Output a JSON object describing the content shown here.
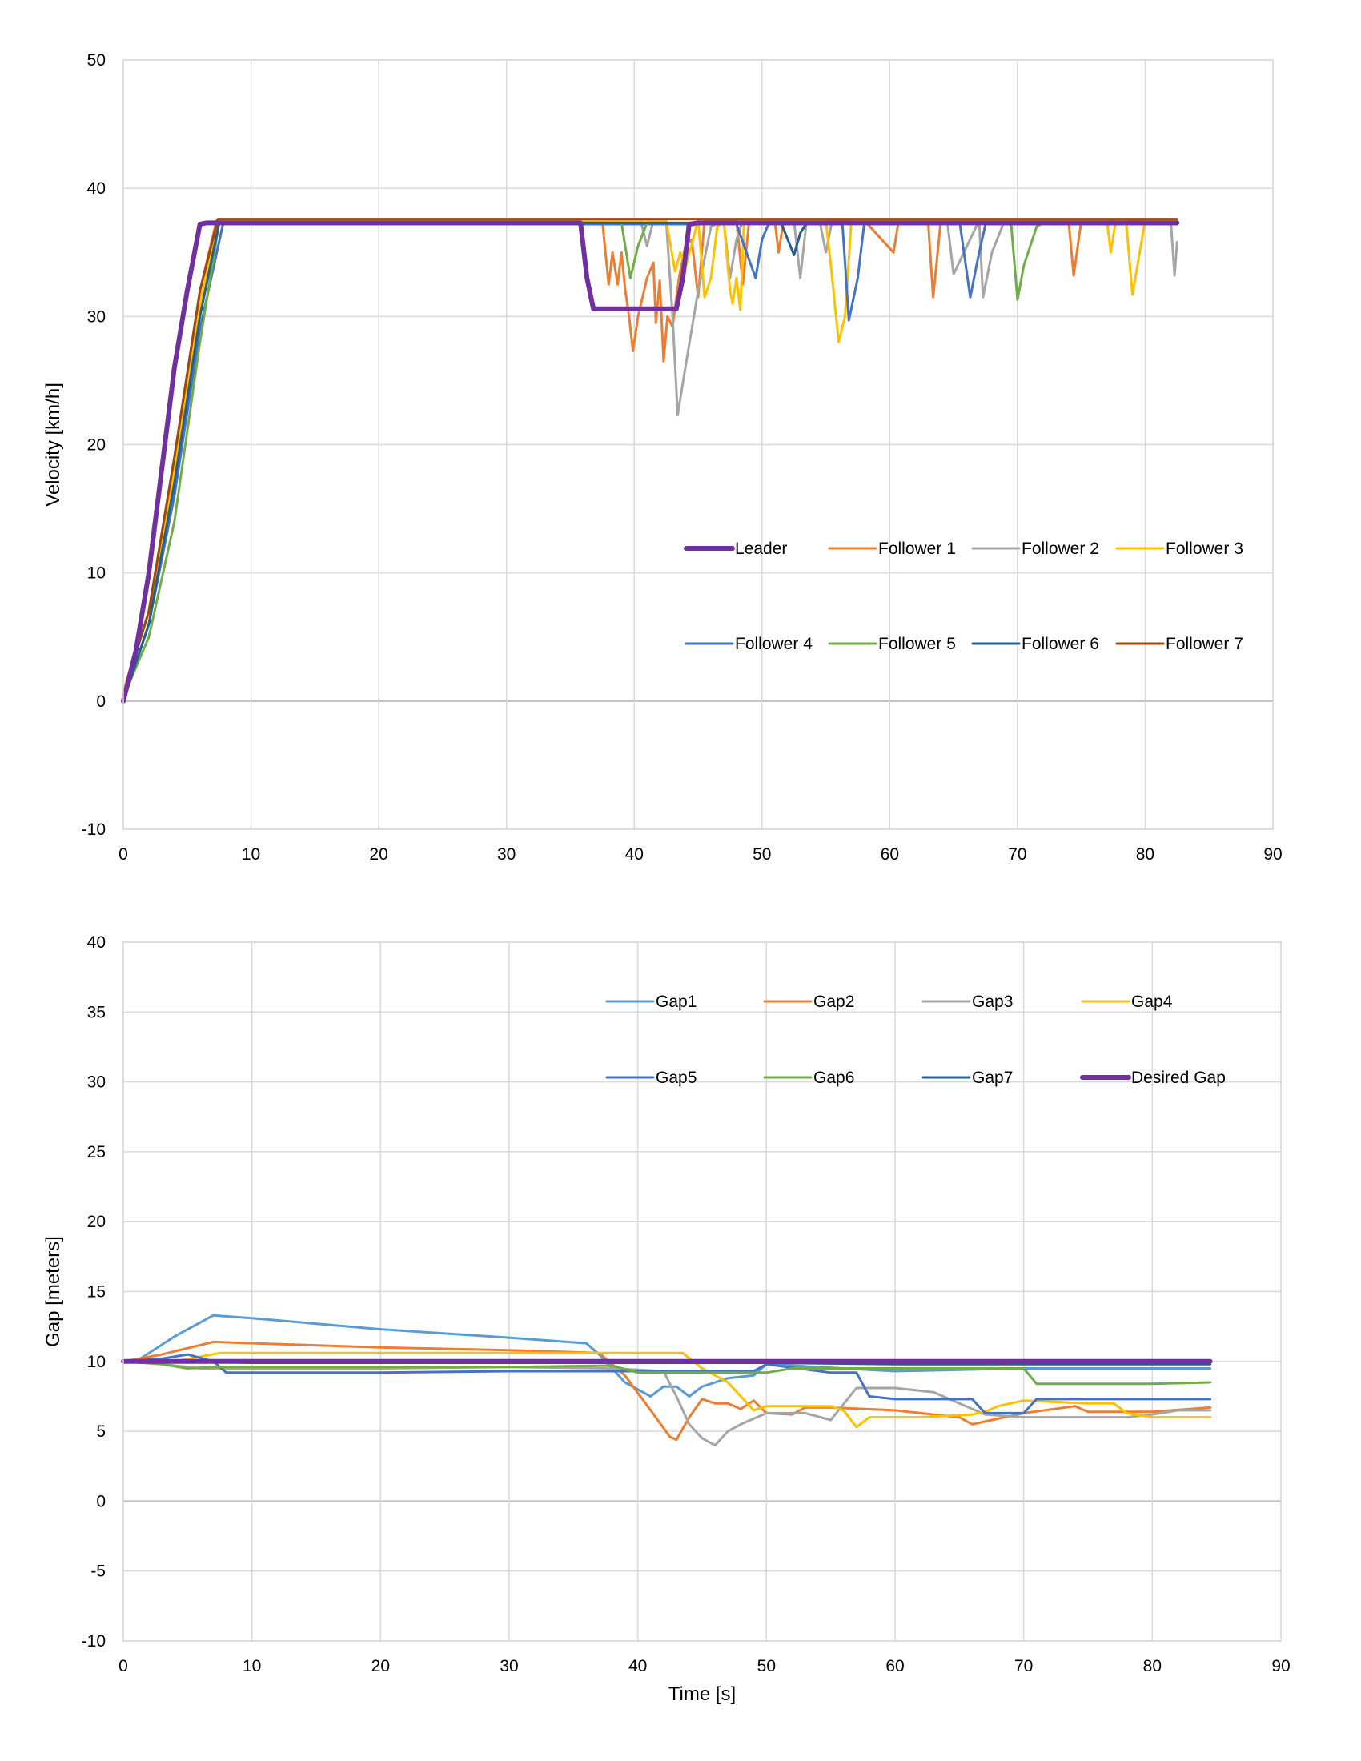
{
  "chart_data": [
    {
      "type": "line",
      "title": "",
      "xlabel": "",
      "ylabel": "Velocity [km/h]",
      "xlim": [
        0,
        90
      ],
      "ylim": [
        -10,
        50
      ],
      "xticks": [
        0,
        10,
        20,
        30,
        40,
        50,
        60,
        70,
        80,
        90
      ],
      "yticks": [
        -10,
        0,
        10,
        20,
        30,
        40,
        50
      ],
      "grid": true,
      "legend_position": "inside lower-right",
      "series": [
        {
          "name": "Leader",
          "color": "#7030A0",
          "width": 6,
          "x": [
            0,
            1,
            2,
            3,
            4,
            5,
            6,
            6.5,
            7,
            10,
            20,
            30,
            35.8,
            36.3,
            36.8,
            40,
            43.3,
            43.8,
            44.3,
            45,
            50,
            60,
            70,
            80,
            82.5
          ],
          "y": [
            0,
            4,
            10,
            18,
            26,
            32,
            37.2,
            37.3,
            37.3,
            37.3,
            37.3,
            37.3,
            37.3,
            33,
            30.6,
            30.6,
            30.6,
            33,
            37.2,
            37.3,
            37.3,
            37.3,
            37.3,
            37.3,
            37.3
          ]
        },
        {
          "name": "Follower 1",
          "color": "#ED7D31",
          "width": 3,
          "x": [
            0,
            2,
            4,
            6,
            7.3,
            10,
            30,
            37.5,
            38,
            38.3,
            38.7,
            39,
            39.3,
            39.6,
            39.9,
            40.3,
            41,
            41.5,
            41.7,
            42,
            42.3,
            42.6,
            43,
            43.5,
            44,
            44.5,
            45,
            45.5,
            46,
            48,
            48.5,
            49,
            50,
            51,
            51.3,
            51.7,
            55,
            58,
            60.3,
            60.7,
            63,
            63.4,
            64,
            70,
            74,
            74.4,
            75,
            80,
            82.5
          ],
          "y": [
            0.5,
            7,
            19,
            32,
            37.5,
            37.5,
            37.5,
            37.5,
            32.5,
            35,
            32.5,
            35,
            32,
            30,
            27.3,
            30,
            33,
            34.2,
            29.5,
            32.8,
            26.5,
            30,
            29.2,
            33,
            35.5,
            36,
            31.5,
            37.5,
            37.5,
            37.5,
            32.5,
            37.5,
            37.5,
            37.5,
            35,
            37.5,
            37.5,
            37.5,
            35,
            37.5,
            37.5,
            31.5,
            37.5,
            37.5,
            37.5,
            33.2,
            37.5,
            37.5,
            37.5
          ]
        },
        {
          "name": "Follower 2",
          "color": "#A5A5A5",
          "width": 3,
          "x": [
            0,
            2,
            4,
            6,
            7.5,
            10,
            30,
            40.5,
            41,
            41.5,
            42.5,
            43,
            43.4,
            44,
            45,
            46,
            47,
            47.5,
            48,
            48.5,
            50,
            52.5,
            53,
            53.5,
            54.5,
            55,
            55.5,
            60,
            64.5,
            65,
            67,
            67.3,
            68,
            69,
            80,
            82,
            82.3,
            82.5
          ],
          "y": [
            0,
            6,
            17,
            31,
            37.5,
            37.5,
            37.5,
            37.5,
            35.5,
            37.5,
            37.5,
            30,
            22.3,
            26,
            32,
            37,
            37.5,
            33,
            36,
            37.5,
            37.5,
            37.5,
            33,
            37.5,
            37.5,
            35,
            37.5,
            37.5,
            37.5,
            33.3,
            37.5,
            31.5,
            35,
            37.5,
            37.5,
            37.5,
            33.2,
            35.8
          ]
        },
        {
          "name": "Follower 3",
          "color": "#FFC000",
          "width": 3,
          "x": [
            0,
            2,
            4,
            6,
            7.5,
            10,
            30,
            42.5,
            43.2,
            43.6,
            44,
            45,
            45.5,
            46,
            46.5,
            47,
            47.5,
            47.7,
            48,
            48.3,
            48.6,
            50,
            55,
            55.5,
            56,
            56.5,
            57,
            60,
            70,
            77,
            77.3,
            77.7,
            78.5,
            79,
            80,
            82.5
          ],
          "y": [
            0.8,
            7,
            18,
            31,
            37.5,
            37.5,
            37.5,
            37.5,
            33.5,
            35,
            33.8,
            37.5,
            31.5,
            33,
            37,
            37.5,
            32,
            31,
            33,
            30.5,
            37.5,
            37.5,
            37.5,
            33,
            28,
            30,
            37.5,
            37.5,
            37.5,
            37.5,
            35,
            37.5,
            37.5,
            31.7,
            37.5,
            37.5
          ]
        },
        {
          "name": "Follower 4",
          "color": "#4472C4",
          "width": 3,
          "x": [
            0,
            2,
            4,
            6,
            7.8,
            10,
            30,
            48,
            49.5,
            50,
            50.5,
            51,
            55,
            56.3,
            56.8,
            57.5,
            58,
            60,
            65.5,
            66.3,
            67,
            67.5,
            68,
            70,
            82.5
          ],
          "y": [
            0,
            6,
            16,
            29,
            37.2,
            37.2,
            37.2,
            37.2,
            33,
            36,
            37.2,
            37.2,
            37.2,
            37.2,
            29.7,
            33,
            37.2,
            37.2,
            37.2,
            31.5,
            35,
            37.2,
            37.2,
            37.2,
            37.2
          ]
        },
        {
          "name": "Follower 5",
          "color": "#70AD47",
          "width": 3,
          "x": [
            0,
            2,
            4,
            6,
            7.5,
            10,
            30,
            39,
            39.7,
            40.3,
            41,
            45,
            50,
            60,
            69.5,
            70,
            70.5,
            71.5,
            72,
            80,
            82.5
          ],
          "y": [
            0.3,
            5,
            14,
            28,
            37.3,
            37.3,
            37.3,
            37.3,
            33,
            35.5,
            37.3,
            37.3,
            37.3,
            37.3,
            37.3,
            31.3,
            34,
            37,
            37.3,
            37.3,
            37.3
          ]
        },
        {
          "name": "Follower 6",
          "color": "#255E91",
          "width": 3,
          "x": [
            0,
            2,
            4,
            6,
            7.5,
            10,
            30,
            51.5,
            52.5,
            53,
            53.5,
            55,
            70,
            82.5
          ],
          "y": [
            0,
            6,
            17,
            30,
            37.3,
            37.3,
            37.3,
            37.3,
            34.8,
            36.5,
            37.3,
            37.3,
            37.3,
            37.3
          ]
        },
        {
          "name": "Follower 7",
          "color": "#9E480E",
          "width": 3,
          "x": [
            0,
            2,
            4,
            6,
            7.4,
            10,
            30,
            50,
            70,
            82.5
          ],
          "y": [
            0.5,
            7,
            19,
            32,
            37.6,
            37.6,
            37.6,
            37.6,
            37.6,
            37.6
          ]
        }
      ]
    },
    {
      "type": "line",
      "title": "",
      "xlabel": "Time [s]",
      "ylabel": "Gap [meters]",
      "xlim": [
        0,
        90
      ],
      "ylim": [
        -10,
        40
      ],
      "xticks": [
        0,
        10,
        20,
        30,
        40,
        50,
        60,
        70,
        80,
        90
      ],
      "yticks": [
        -10,
        -5,
        0,
        5,
        10,
        15,
        20,
        25,
        30,
        35,
        40
      ],
      "grid": true,
      "legend_position": "inside top-right",
      "series": [
        {
          "name": "Gap1",
          "color": "#5B9BD5",
          "width": 3,
          "x": [
            0,
            1,
            4,
            7,
            10,
            20,
            30,
            36,
            37,
            39,
            41,
            42,
            43,
            44,
            45,
            47,
            49,
            50,
            60,
            70,
            80,
            84.5
          ],
          "y": [
            10,
            10,
            11.8,
            13.3,
            13.1,
            12.3,
            11.7,
            11.3,
            10.5,
            8.5,
            7.5,
            8.2,
            8.2,
            7.5,
            8.2,
            8.8,
            9,
            9.8,
            9.3,
            9.5,
            9.5,
            9.5
          ]
        },
        {
          "name": "Gap2",
          "color": "#ED7D31",
          "width": 3,
          "x": [
            0,
            3,
            7,
            10,
            20,
            30,
            37,
            39,
            41,
            42.5,
            43,
            44,
            45,
            46,
            47,
            48,
            49,
            50,
            52,
            53,
            55,
            60,
            65,
            66,
            70,
            74,
            75,
            80,
            84.5
          ],
          "y": [
            10,
            10.5,
            11.4,
            11.3,
            11,
            10.8,
            10.6,
            9,
            6.5,
            4.6,
            4.4,
            6,
            7.3,
            7,
            7,
            6.6,
            7.2,
            6.3,
            6.2,
            6.7,
            6.7,
            6.5,
            6,
            5.5,
            6.3,
            6.8,
            6.4,
            6.4,
            6.7
          ]
        },
        {
          "name": "Gap3",
          "color": "#A5A5A5",
          "width": 3,
          "x": [
            0,
            3,
            6,
            10,
            20,
            30,
            38,
            42,
            43,
            44,
            45,
            46,
            47,
            48,
            50,
            53,
            55,
            57,
            60,
            63,
            65,
            67,
            70,
            78,
            80,
            82,
            84.5
          ],
          "y": [
            10,
            9.8,
            9.5,
            9.5,
            9.5,
            9.6,
            9.5,
            9.3,
            7.5,
            5.5,
            4.5,
            4,
            5,
            5.5,
            6.3,
            6.3,
            5.8,
            8.1,
            8.1,
            7.8,
            7,
            6.2,
            6,
            6,
            6.2,
            6.5,
            6.5
          ]
        },
        {
          "name": "Gap4",
          "color": "#FFC000",
          "width": 3,
          "x": [
            0,
            4,
            7.5,
            10,
            20,
            30,
            40,
            43.5,
            45,
            47,
            49,
            50,
            55,
            56,
            57,
            58,
            60,
            62,
            66,
            67,
            68,
            70,
            75,
            77,
            78,
            80,
            84.5
          ],
          "y": [
            10,
            10,
            10.6,
            10.6,
            10.6,
            10.6,
            10.6,
            10.6,
            9.5,
            8.5,
            6.5,
            6.8,
            6.8,
            6.5,
            5.3,
            6,
            6,
            6,
            6.2,
            6.4,
            6.8,
            7.2,
            7,
            7,
            6.3,
            6,
            6
          ]
        },
        {
          "name": "Gap5",
          "color": "#4472C4",
          "width": 3,
          "x": [
            0,
            3,
            5,
            7,
            8,
            10,
            20,
            30,
            38,
            49,
            50,
            55,
            57,
            58,
            60,
            66,
            67,
            70,
            71,
            80,
            84.5
          ],
          "y": [
            10,
            10.2,
            10.5,
            10,
            9.2,
            9.2,
            9.2,
            9.3,
            9.3,
            9.3,
            9.8,
            9.2,
            9.2,
            7.5,
            7.3,
            7.3,
            6.3,
            6.3,
            7.3,
            7.3,
            7.3
          ]
        },
        {
          "name": "Gap6",
          "color": "#70AD47",
          "width": 3,
          "x": [
            0,
            3,
            5,
            7,
            10,
            20,
            30,
            38,
            40,
            50,
            52,
            60,
            70,
            71,
            80,
            84.5
          ],
          "y": [
            10,
            9.8,
            9.5,
            9.6,
            9.6,
            9.6,
            9.6,
            9.7,
            9.2,
            9.2,
            9.5,
            9.5,
            9.5,
            8.4,
            8.4,
            8.5
          ]
        },
        {
          "name": "Gap7",
          "color": "#255E91",
          "width": 3,
          "x": [
            0,
            5,
            10,
            20,
            30,
            40,
            50,
            60,
            70,
            80,
            84.5
          ],
          "y": [
            10,
            10,
            9.9,
            9.9,
            9.9,
            9.9,
            9.9,
            9.8,
            9.8,
            9.8,
            9.8
          ]
        },
        {
          "name": "Desired Gap",
          "color": "#7030A0",
          "width": 6,
          "x": [
            0,
            84.5
          ],
          "y": [
            10,
            10
          ]
        }
      ]
    }
  ]
}
